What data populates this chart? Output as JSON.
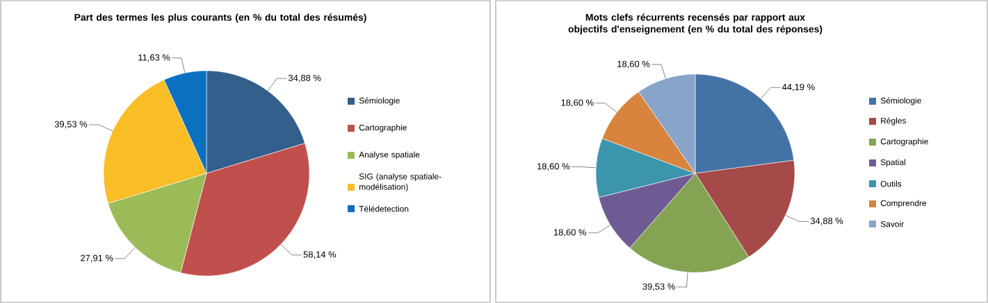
{
  "chart_data": [
    {
      "type": "pie",
      "title": "Part des termes les plus courants (en % du total des résumés)",
      "categories": [
        "Sémiologie",
        "Cartographie",
        "Analyse spatiale",
        "SIG (analyse spatiale-modélisation)",
        "Télédetection"
      ],
      "values": [
        34.88,
        58.14,
        27.91,
        39.53,
        11.63
      ],
      "value_labels": [
        "34,88  %",
        "58,14  %",
        "27,91 %",
        "39,53  %",
        "11,63 %"
      ],
      "colors": [
        "#335f8c",
        "#c0504d",
        "#9bbb59",
        "#f9bd25",
        "#0b70c0"
      ],
      "legend": "right"
    },
    {
      "type": "pie",
      "title": "Mots clefs récurrents recensés par rapport aux objectifs d'enseignement (en % du total des réponses)",
      "categories": [
        "Sémiologie",
        "Règles",
        "Cartographie",
        "Spatial",
        "Outils",
        "Comprendre",
        "Savoir"
      ],
      "values": [
        44.19,
        34.88,
        39.53,
        18.6,
        18.6,
        18.6,
        18.6
      ],
      "value_labels": [
        "44,19  %",
        "34,88  %",
        "39,53  %",
        "18,60  %",
        "18,60  %",
        "18,60  %",
        "18,60  %"
      ],
      "colors": [
        "#4372a6",
        "#a54a48",
        "#84a454",
        "#6f5b93",
        "#3b96ad",
        "#d8843f",
        "#89a4c9"
      ],
      "legend": "right"
    }
  ]
}
